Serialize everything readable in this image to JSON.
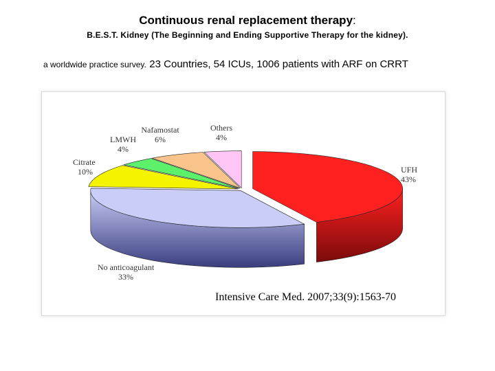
{
  "header": {
    "title_main": "Continuous renal replacement therapy",
    "title_colon": ":",
    "subtitle": "B.E.S.T. Kidney (The Beginning and Ending Supportive Therapy for the kidney).",
    "survey_small": "a worldwide practice survey.",
    "survey_big": "23 Countries, 54 ICUs, 1006 patients with ARF on CRRT"
  },
  "chart_data": {
    "type": "pie",
    "title": "",
    "slices": [
      {
        "name": "UFH",
        "value": 43,
        "label": "43%",
        "color": "#ff2020",
        "dark": "#7a0b0b"
      },
      {
        "name": "No anticoagulant",
        "value": 33,
        "label": "33%",
        "color": "#c9cdf7",
        "dark": "#3a3e7e"
      },
      {
        "name": "Citrate",
        "value": 10,
        "label": "10%",
        "color": "#f4f400",
        "dark": "#5e5e00"
      },
      {
        "name": "LMWH",
        "value": 4,
        "label": "4%",
        "color": "#5df06a",
        "dark": "#1e6a24"
      },
      {
        "name": "Nafamostat",
        "value": 6,
        "label": "6%",
        "color": "#f9c48c",
        "dark": "#8a5a22"
      },
      {
        "name": "Others",
        "value": 4,
        "label": "4%",
        "color": "#ffc6f5",
        "dark": "#8a5a82"
      }
    ]
  },
  "citation": "Intensive Care Med. 2007;33(9):1563-70"
}
